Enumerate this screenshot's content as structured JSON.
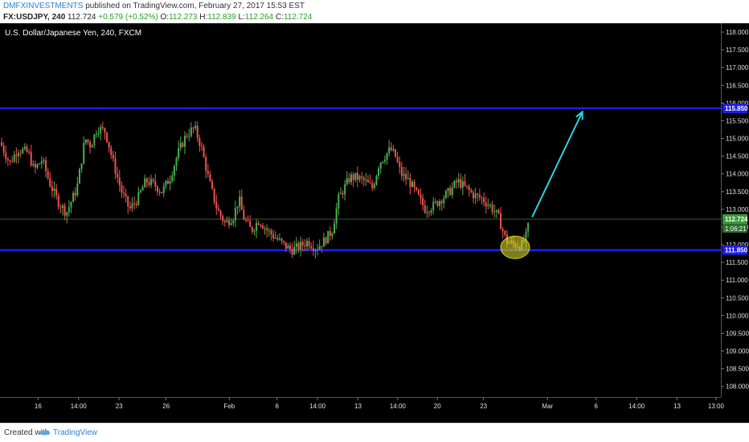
{
  "header": {
    "author": "DMFXINVESTMENTS",
    "published": " published on TradingView.com, February 27, 2017 15:53 EST",
    "symbol": "FX:USDJPY, 240",
    "last": "112.724",
    "change": "+0.579 (+0.52%)",
    "o_label": "O:",
    "o_value": "112.273",
    "h_label": "H:",
    "h_value": "112.839",
    "l_label": "L:",
    "l_value": "112.264",
    "c_label": "C:",
    "c_value": "112.724"
  },
  "footer": {
    "created_with": "Created with",
    "brand": "TradingView"
  },
  "colors": {
    "background": "#000000",
    "up_candle": "#4caf50",
    "down_candle": "#ef5350",
    "level_line": "#1e1ee6",
    "arrow": "#2ad4e0",
    "price_tag": "#3a9a3a",
    "level_tag": "#1e1ee6",
    "highlight": "#d7d21e"
  },
  "chart_data": {
    "type": "candlestick",
    "title": "U.S. Dollar/Japanese Yen, 240, FXCM",
    "ylim": [
      107.7,
      118.25
    ],
    "y_ticks": [
      "118.000",
      "117.500",
      "117.000",
      "116.500",
      "116.000",
      "115.500",
      "115.000",
      "114.500",
      "114.000",
      "113.500",
      "113.000",
      "112.500",
      "112.000",
      "111.500",
      "111.000",
      "110.500",
      "110.000",
      "109.500",
      "109.000",
      "108.500",
      "108.000"
    ],
    "x_range": [
      0,
      890
    ],
    "x_ticks": [
      {
        "label": "16",
        "x": 47
      },
      {
        "label": "14:00",
        "x": 97
      },
      {
        "label": "23",
        "x": 147
      },
      {
        "label": "26",
        "x": 205
      },
      {
        "label": "Feb",
        "x": 283
      },
      {
        "label": "6",
        "x": 342
      },
      {
        "label": "14:00",
        "x": 392
      },
      {
        "label": "13",
        "x": 442
      },
      {
        "label": "14:00",
        "x": 491
      },
      {
        "label": "20",
        "x": 540
      },
      {
        "label": "23",
        "x": 597
      },
      {
        "label": "Mar",
        "x": 676
      },
      {
        "label": "6",
        "x": 736
      },
      {
        "label": "14:00",
        "x": 786
      },
      {
        "label": "13",
        "x": 836
      },
      {
        "label": "13:00",
        "x": 884
      }
    ],
    "resistance": {
      "value": 115.85,
      "label": "115.850"
    },
    "support": {
      "value": 111.85,
      "label": "111.850"
    },
    "last_price": {
      "value": 112.724,
      "label": "112.724",
      "countdown": "1:06:21"
    },
    "projection": {
      "from": [
        657,
        112.78
      ],
      "to": [
        719,
        115.75
      ]
    },
    "highlight_zone": {
      "x": 636,
      "y": 111.88
    },
    "waypoints": [
      [
        0,
        114.9
      ],
      [
        12,
        114.3
      ],
      [
        22,
        114.7
      ],
      [
        35,
        114.6
      ],
      [
        42,
        114.1
      ],
      [
        52,
        114.4
      ],
      [
        62,
        113.7
      ],
      [
        72,
        113.2
      ],
      [
        82,
        112.9
      ],
      [
        95,
        113.6
      ],
      [
        105,
        115.0
      ],
      [
        112,
        114.8
      ],
      [
        120,
        115.3
      ],
      [
        130,
        115.2
      ],
      [
        140,
        114.3
      ],
      [
        150,
        113.5
      ],
      [
        160,
        113.0
      ],
      [
        170,
        113.3
      ],
      [
        180,
        113.8
      ],
      [
        190,
        113.7
      ],
      [
        200,
        113.5
      ],
      [
        210,
        113.9
      ],
      [
        220,
        114.6
      ],
      [
        230,
        115.1
      ],
      [
        240,
        115.3
      ],
      [
        248,
        114.8
      ],
      [
        258,
        113.8
      ],
      [
        268,
        113.0
      ],
      [
        278,
        112.6
      ],
      [
        288,
        112.8
      ],
      [
        295,
        113.3
      ],
      [
        300,
        112.8
      ],
      [
        310,
        112.4
      ],
      [
        320,
        112.7
      ],
      [
        330,
        112.4
      ],
      [
        340,
        112.2
      ],
      [
        350,
        112.0
      ],
      [
        360,
        111.85
      ],
      [
        370,
        111.95
      ],
      [
        380,
        112.1
      ],
      [
        390,
        111.9
      ],
      [
        400,
        112.1
      ],
      [
        410,
        112.4
      ],
      [
        418,
        113.3
      ],
      [
        425,
        113.6
      ],
      [
        432,
        113.9
      ],
      [
        440,
        113.9
      ],
      [
        450,
        113.8
      ],
      [
        460,
        113.6
      ],
      [
        468,
        114.3
      ],
      [
        475,
        114.5
      ],
      [
        482,
        114.7
      ],
      [
        488,
        114.5
      ],
      [
        495,
        114.0
      ],
      [
        505,
        113.8
      ],
      [
        515,
        113.4
      ],
      [
        525,
        113.0
      ],
      [
        535,
        113.1
      ],
      [
        545,
        113.3
      ],
      [
        555,
        113.5
      ],
      [
        565,
        113.8
      ],
      [
        575,
        113.6
      ],
      [
        585,
        113.4
      ],
      [
        595,
        113.3
      ],
      [
        605,
        113.1
      ],
      [
        615,
        112.8
      ],
      [
        625,
        112.1
      ],
      [
        635,
        112.0
      ],
      [
        645,
        112.0
      ],
      [
        650,
        112.27
      ],
      [
        654,
        112.72
      ]
    ]
  }
}
